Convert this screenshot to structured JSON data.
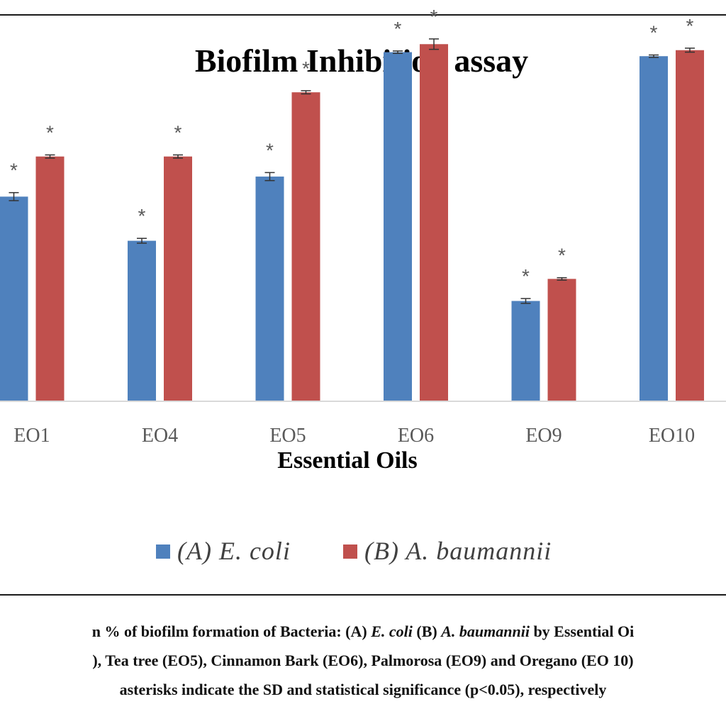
{
  "chart_data": {
    "type": "bar",
    "title": "Biofilm Inhibition assay",
    "xlabel": "Essential Oils",
    "categories": [
      "EO1",
      "EO4",
      "EO5",
      "EO6",
      "EO9",
      "EO10"
    ],
    "series": [
      {
        "name": "(A) E. coli",
        "color": "#4f81bd",
        "values": [
          51,
          40,
          56,
          87,
          25,
          86
        ],
        "errors": [
          1.0,
          0.6,
          1.0,
          0.3,
          0.6,
          0.3
        ],
        "significance": [
          "*",
          "*",
          "*",
          "*",
          "*",
          "*"
        ]
      },
      {
        "name": "(B) A. baumannii",
        "color": "#c0504d",
        "values": [
          61,
          61,
          77,
          89,
          30.5,
          87.5
        ],
        "errors": [
          0.4,
          0.4,
          0.4,
          1.3,
          0.3,
          0.5
        ],
        "significance": [
          "*",
          "*",
          "*",
          "*",
          "*",
          "*"
        ]
      }
    ],
    "ylim": [
      0,
      100
    ],
    "grid": false,
    "legend_position": "bottom"
  },
  "legend": {
    "items": [
      "(A) E. coli",
      "(B) A. baumannii"
    ]
  },
  "caption": {
    "line1_prefix": "n % of biofilm formation of Bacteria: (A) ",
    "line1_ecoli": "E. coli",
    "line1_mid": " (B) ",
    "line1_abau": "A. baumannii",
    "line1_suffix": " by Essential Oi",
    "line2": "), Tea tree (EO5), Cinnamon Bark (EO6), Palmorosa (EO9) and Oregano (EO 10)",
    "line3": "asterisks indicate the SD and statistical significance (p<0.05), respectively"
  }
}
